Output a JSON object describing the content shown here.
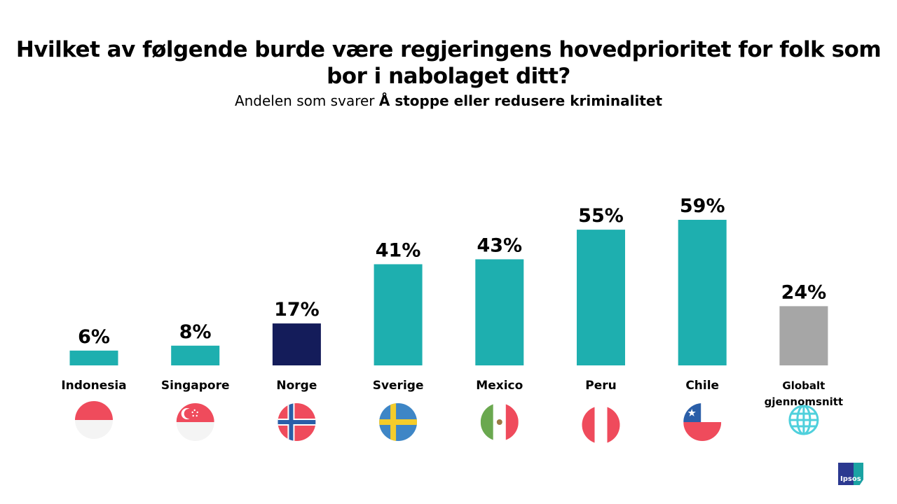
{
  "title": "Hvilket av følgende burde være regjeringens hovedprioritet for folk som bor i nabolaget ditt?",
  "subtitle_prefix": "Andelen som svarer",
  "subtitle_bold": "Å stoppe eller redusere kriminalitet",
  "logo_text": "Ipsos",
  "chart_data": {
    "type": "bar",
    "categories": [
      "Indonesia",
      "Singapore",
      "Norge",
      "Sverige",
      "Mexico",
      "Peru",
      "Chile",
      "Globalt gjennomsnitt"
    ],
    "values": [
      6,
      8,
      17,
      41,
      43,
      55,
      59,
      24
    ],
    "data_labels": [
      "6%",
      "8%",
      "17%",
      "41%",
      "43%",
      "55%",
      "59%",
      "24%"
    ],
    "unit": "%",
    "colors": [
      "#1eafaf",
      "#1eafaf",
      "#141c5a",
      "#1eafaf",
      "#1eafaf",
      "#1eafaf",
      "#1eafaf",
      "#a6a6a6"
    ],
    "flags": [
      "indonesia-flag",
      "singapore-flag",
      "norway-flag",
      "sweden-flag",
      "mexico-flag",
      "peru-flag",
      "chile-flag",
      "globe-icon"
    ],
    "grid": false
  }
}
